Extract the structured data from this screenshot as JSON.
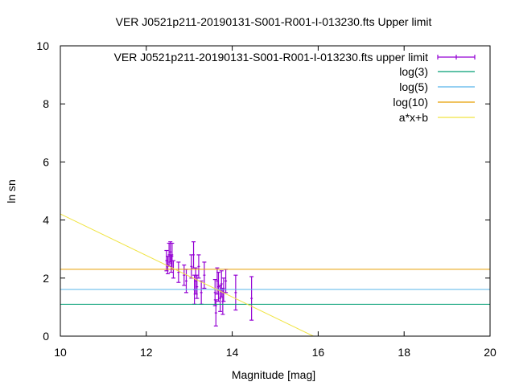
{
  "chart_data": {
    "type": "scatter",
    "title": "VER J0521p211-20190131-S001-R001-I-013230.fts Upper limit",
    "xlabel": "Magnitude [mag]",
    "ylabel": "ln sn",
    "xlim": [
      10,
      20
    ],
    "ylim": [
      0,
      10
    ],
    "xticks": [
      "10",
      "12",
      "14",
      "16",
      "18",
      "20"
    ],
    "yticks": [
      "0",
      "2",
      "4",
      "6",
      "8",
      "10"
    ],
    "grid": false,
    "legend_position": "top-right",
    "series": [
      {
        "name": "VER J0521p211-20190131-S001-R001-I-013230.fts upper limit",
        "style": "errorbars",
        "color": "#9400d3",
        "points": [
          {
            "x": 12.47,
            "y": 2.6,
            "err": 0.35
          },
          {
            "x": 12.5,
            "y": 2.45,
            "err": 0.3
          },
          {
            "x": 12.53,
            "y": 2.8,
            "err": 0.4
          },
          {
            "x": 12.56,
            "y": 2.9,
            "err": 0.35
          },
          {
            "x": 12.58,
            "y": 2.5,
            "err": 0.3
          },
          {
            "x": 12.6,
            "y": 2.75,
            "err": 0.45
          },
          {
            "x": 12.63,
            "y": 2.3,
            "err": 0.3
          },
          {
            "x": 12.75,
            "y": 2.2,
            "err": 0.35
          },
          {
            "x": 12.88,
            "y": 2.1,
            "err": 0.35
          },
          {
            "x": 12.93,
            "y": 1.9,
            "err": 0.4
          },
          {
            "x": 13.05,
            "y": 2.4,
            "err": 0.4
          },
          {
            "x": 13.1,
            "y": 2.8,
            "err": 0.45
          },
          {
            "x": 13.12,
            "y": 1.6,
            "err": 0.5
          },
          {
            "x": 13.15,
            "y": 1.9,
            "err": 0.45
          },
          {
            "x": 13.18,
            "y": 1.7,
            "err": 0.4
          },
          {
            "x": 13.22,
            "y": 2.4,
            "err": 0.4
          },
          {
            "x": 13.28,
            "y": 1.5,
            "err": 0.4
          },
          {
            "x": 13.35,
            "y": 2.1,
            "err": 0.45
          },
          {
            "x": 13.6,
            "y": 1.5,
            "err": 0.45
          },
          {
            "x": 13.62,
            "y": 0.8,
            "err": 0.45
          },
          {
            "x": 13.65,
            "y": 1.9,
            "err": 0.45
          },
          {
            "x": 13.68,
            "y": 1.7,
            "err": 0.5
          },
          {
            "x": 13.72,
            "y": 1.3,
            "err": 0.45
          },
          {
            "x": 13.75,
            "y": 1.8,
            "err": 0.45
          },
          {
            "x": 13.78,
            "y": 1.2,
            "err": 0.45
          },
          {
            "x": 13.8,
            "y": 1.6,
            "err": 0.4
          },
          {
            "x": 13.85,
            "y": 1.9,
            "err": 0.4
          },
          {
            "x": 14.08,
            "y": 1.5,
            "err": 0.6
          },
          {
            "x": 14.45,
            "y": 1.3,
            "err": 0.75
          }
        ]
      },
      {
        "name": "log(3)",
        "style": "hline",
        "color": "#009e73",
        "y": 1.0986
      },
      {
        "name": "log(5)",
        "style": "hline",
        "color": "#56b4e9",
        "y": 1.6094
      },
      {
        "name": "log(10)",
        "style": "hline",
        "color": "#e69f00",
        "y": 2.3026
      },
      {
        "name": "a*x+b",
        "style": "line",
        "color": "#f0e442",
        "slope": -0.715,
        "intercept": 11.36
      }
    ]
  }
}
